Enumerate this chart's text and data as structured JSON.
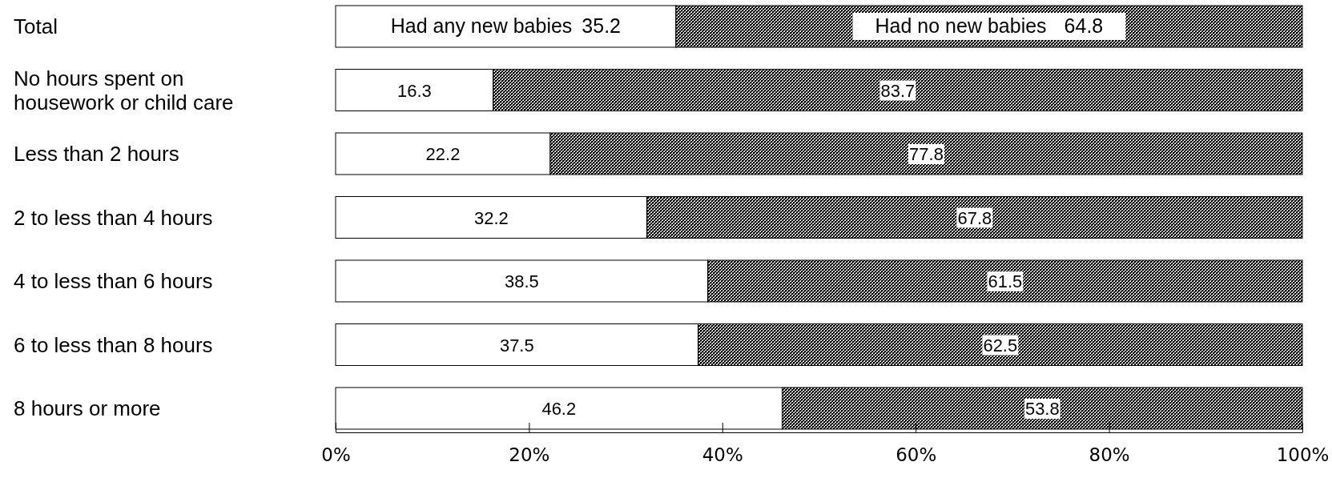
{
  "chart_data": {
    "type": "bar",
    "orientation": "horizontal",
    "stacked": true,
    "data_labels": true,
    "grid": false,
    "categories": [
      "Total",
      "No hours spent on\nhousework or child care",
      "Less than 2 hours",
      "2 to less than 4 hours",
      "4 to less than 6 hours",
      "6 to less than 8 hours",
      "8 hours or more"
    ],
    "series": [
      {
        "name": "Had any new babies",
        "color": "#ffffff",
        "values": [
          35.2,
          16.3,
          22.2,
          32.2,
          38.5,
          37.5,
          46.2
        ]
      },
      {
        "name": "Had no new babies",
        "color": "#000000",
        "values": [
          64.8,
          83.7,
          77.8,
          67.8,
          61.5,
          62.5,
          53.8
        ]
      }
    ],
    "xlim": [
      0,
      100
    ],
    "xticks": [
      {
        "value": 0,
        "label": "0%"
      },
      {
        "value": 20,
        "label": "20%"
      },
      {
        "value": 40,
        "label": "40%"
      },
      {
        "value": 60,
        "label": "60%"
      },
      {
        "value": 80,
        "label": "80%"
      },
      {
        "value": 100,
        "label": "100%"
      }
    ]
  }
}
